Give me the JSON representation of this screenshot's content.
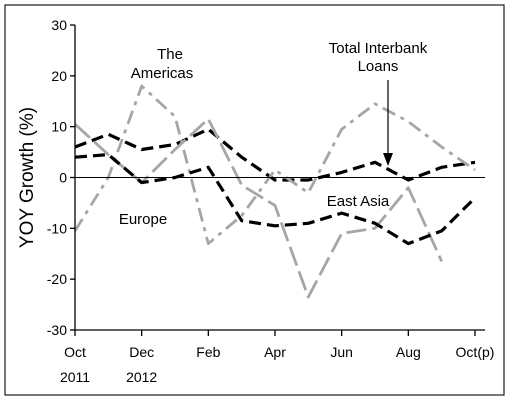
{
  "chart_data": {
    "type": "line",
    "ylabel": "YOY Growth (%)",
    "ylim": [
      -30,
      30
    ],
    "yticks": [
      30,
      20,
      10,
      0,
      -10,
      -20,
      -30
    ],
    "xticks": [
      {
        "month": 0,
        "label": "Oct",
        "sub": "2011"
      },
      {
        "month": 2,
        "label": "Dec",
        "sub": "2012"
      },
      {
        "month": 4,
        "label": "Feb",
        "sub": ""
      },
      {
        "month": 6,
        "label": "Apr",
        "sub": ""
      },
      {
        "month": 8,
        "label": "Jun",
        "sub": ""
      },
      {
        "month": 10,
        "label": "Aug",
        "sub": ""
      },
      {
        "month": 12,
        "label": "Oct(p)",
        "sub": ""
      }
    ],
    "zero_line": true,
    "grid": false,
    "annotations": [
      {
        "text": "The",
        "series": 1
      },
      {
        "text": "Americas",
        "series": 1
      },
      {
        "text": "Total Interbank",
        "series": 0
      },
      {
        "text": "Loans",
        "series": 0
      },
      {
        "text": "Europe",
        "series": 2
      },
      {
        "text": "East Asia",
        "series": 3
      }
    ],
    "series": [
      {
        "style": "dash",
        "color": "#000000",
        "x": [
          0,
          1,
          2,
          3,
          4,
          5,
          6,
          7,
          8,
          9,
          10,
          11,
          12
        ],
        "y": [
          6,
          8.5,
          5.5,
          6.5,
          9.5,
          4,
          -0.5,
          -0.5,
          1,
          3,
          -0.5,
          2,
          3
        ]
      },
      {
        "style": "dashdot",
        "color": "#a6a6a6",
        "x": [
          0,
          1,
          2,
          3,
          4,
          5,
          6,
          7,
          8,
          9,
          10,
          11,
          12
        ],
        "y": [
          -10.5,
          0,
          18,
          12,
          -13,
          -7.5,
          1.5,
          -3,
          9.5,
          14.5,
          11,
          6,
          1.5
        ]
      },
      {
        "style": "longdash",
        "color": "#a6a6a6",
        "x": [
          0,
          1,
          2,
          3,
          4,
          5,
          6,
          7,
          8,
          9,
          10,
          11,
          12
        ],
        "y": [
          10.5,
          4.5,
          -1,
          5.5,
          11.5,
          -1.5,
          -5.5,
          -23.5,
          -11,
          -10,
          -2,
          -16.5,
          null
        ]
      },
      {
        "style": "dash",
        "color": "#000000",
        "x": [
          0,
          1,
          2,
          3,
          4,
          5,
          6,
          7,
          8,
          9,
          10,
          11,
          12
        ],
        "y": [
          4,
          4.5,
          -1,
          0,
          2,
          -8.5,
          -9.5,
          -9,
          -7,
          -9,
          -13,
          -10.5,
          -4
        ]
      }
    ]
  }
}
